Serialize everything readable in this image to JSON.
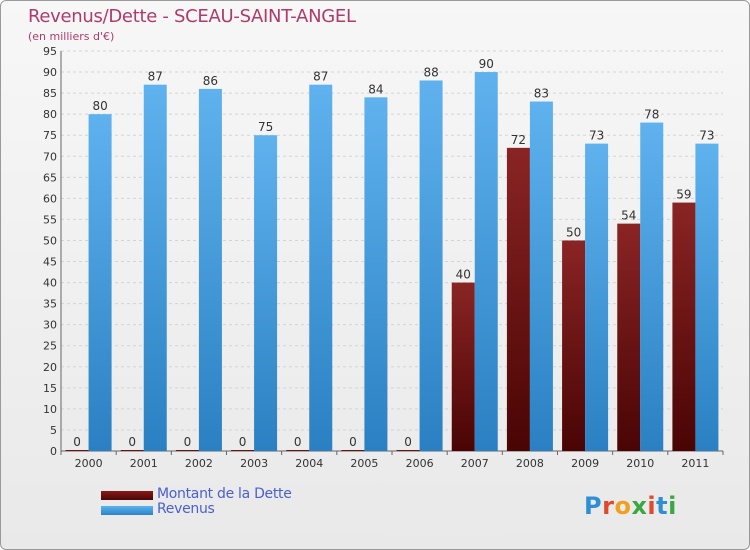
{
  "header": {
    "title": "Revenus/Dette - SCEAU-SAINT-ANGEL",
    "subtitle": "(en milliers d'€)"
  },
  "legend": [
    {
      "label": "Montant de la Dette",
      "color": "#6e0d0d"
    },
    {
      "label": "Revenus",
      "color": "#3d9be0"
    }
  ],
  "logo": {
    "text": "Proxiti"
  },
  "chart_data": {
    "type": "bar",
    "title": "Revenus/Dette - SCEAU-SAINT-ANGEL",
    "subtitle": "(en milliers d'€)",
    "categories": [
      "2000",
      "2001",
      "2002",
      "2003",
      "2004",
      "2005",
      "2006",
      "2007",
      "2008",
      "2009",
      "2010",
      "2011"
    ],
    "series": [
      {
        "name": "Montant de la Dette",
        "color": "#6e0d0d",
        "values": [
          0,
          0,
          0,
          0,
          0,
          0,
          0,
          40,
          72,
          50,
          54,
          59
        ]
      },
      {
        "name": "Revenus",
        "color": "#3d9be0",
        "values": [
          80,
          87,
          86,
          75,
          87,
          84,
          88,
          90,
          83,
          73,
          78,
          73
        ]
      }
    ],
    "ylim": [
      0,
      95
    ],
    "yticks": [
      0,
      5,
      10,
      15,
      20,
      25,
      30,
      35,
      40,
      45,
      50,
      55,
      60,
      65,
      70,
      75,
      80,
      85,
      90,
      95
    ],
    "grid": true,
    "legend_position": "bottom-left"
  }
}
